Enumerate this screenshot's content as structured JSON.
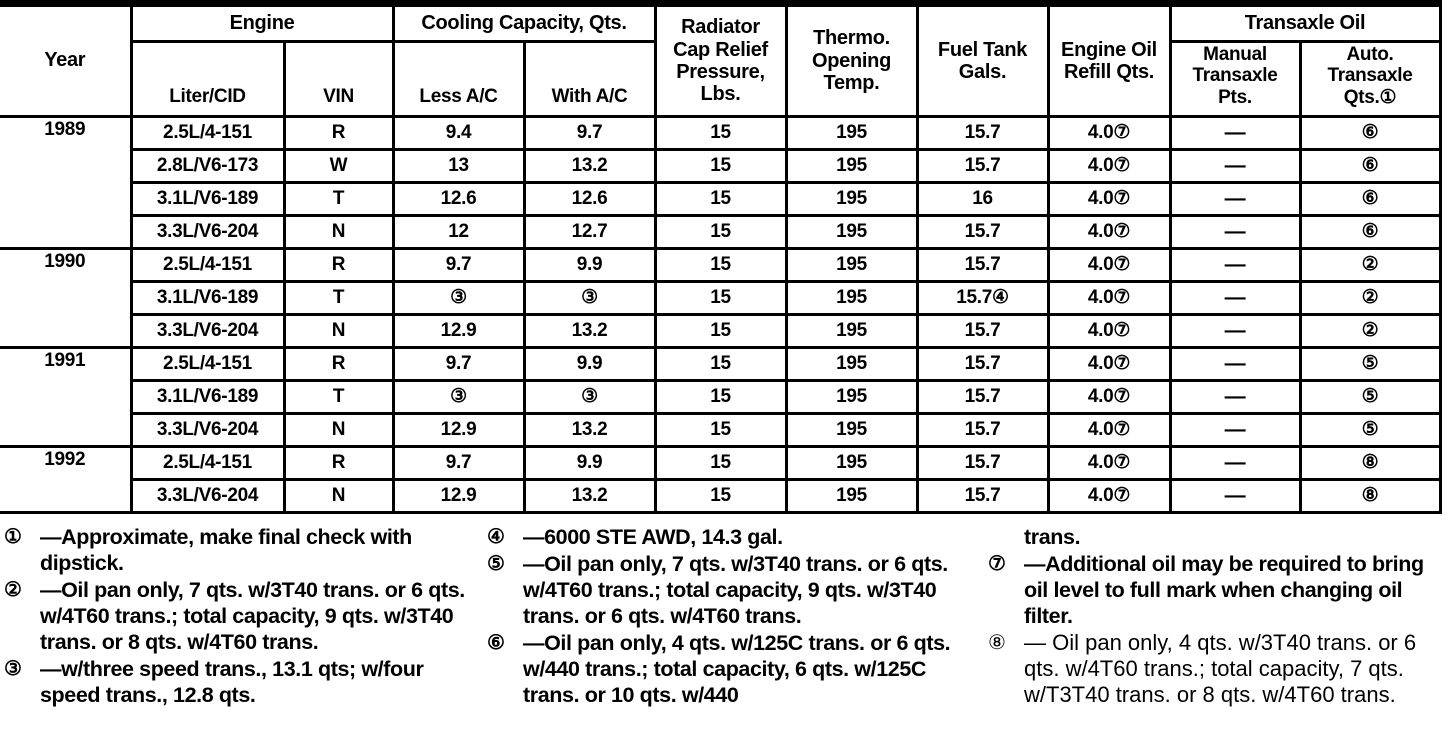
{
  "colors": {
    "ink": "#000000",
    "paper": "#ffffff"
  },
  "table": {
    "header": {
      "year": "Year",
      "engine_group": "Engine",
      "liter_cid": "Liter/CID",
      "vin": "VIN",
      "cooling_group": "Cooling Capacity, Qts.",
      "less_ac": "Less A/C",
      "with_ac": "With A/C",
      "radiator": "Radiator\nCap Relief\nPressure,\nLbs.",
      "thermo": "Thermo.\nOpening\nTemp.",
      "fuel": "Fuel Tank\nGals.",
      "engine_oil": "Engine Oil\nRefill Qts.",
      "transaxle_group": "Transaxle Oil",
      "manual_transaxle": "Manual\nTransaxle\nPts.",
      "auto_transaxle": "Auto.\nTransaxle\nQts.①"
    },
    "groups": [
      {
        "year": "1989",
        "rows": [
          [
            "2.5L/4-151",
            "R",
            "9.4",
            "9.7",
            "15",
            "195",
            "15.7",
            "4.0⑦",
            "—",
            "⑥"
          ],
          [
            "2.8L/V6-173",
            "W",
            "13",
            "13.2",
            "15",
            "195",
            "15.7",
            "4.0⑦",
            "—",
            "⑥"
          ],
          [
            "3.1L/V6-189",
            "T",
            "12.6",
            "12.6",
            "15",
            "195",
            "16",
            "4.0⑦",
            "—",
            "⑥"
          ],
          [
            "3.3L/V6-204",
            "N",
            "12",
            "12.7",
            "15",
            "195",
            "15.7",
            "4.0⑦",
            "—",
            "⑥"
          ]
        ]
      },
      {
        "year": "1990",
        "rows": [
          [
            "2.5L/4-151",
            "R",
            "9.7",
            "9.9",
            "15",
            "195",
            "15.7",
            "4.0⑦",
            "—",
            "②"
          ],
          [
            "3.1L/V6-189",
            "T",
            "③",
            "③",
            "15",
            "195",
            "15.7④",
            "4.0⑦",
            "—",
            "②"
          ],
          [
            "3.3L/V6-204",
            "N",
            "12.9",
            "13.2",
            "15",
            "195",
            "15.7",
            "4.0⑦",
            "—",
            "②"
          ]
        ]
      },
      {
        "year": "1991",
        "rows": [
          [
            "2.5L/4-151",
            "R",
            "9.7",
            "9.9",
            "15",
            "195",
            "15.7",
            "4.0⑦",
            "—",
            "⑤"
          ],
          [
            "3.1L/V6-189",
            "T",
            "③",
            "③",
            "15",
            "195",
            "15.7",
            "4.0⑦",
            "—",
            "⑤"
          ],
          [
            "3.3L/V6-204",
            "N",
            "12.9",
            "13.2",
            "15",
            "195",
            "15.7",
            "4.0⑦",
            "—",
            "⑤"
          ]
        ]
      },
      {
        "year": "1992",
        "rows": [
          [
            "2.5L/4-151",
            "R",
            "9.7",
            "9.9",
            "15",
            "195",
            "15.7",
            "4.0⑦",
            "—",
            "⑧"
          ],
          [
            "3.3L/V6-204",
            "N",
            "12.9",
            "13.2",
            "15",
            "195",
            "15.7",
            "4.0⑦",
            "—",
            "⑧"
          ]
        ]
      }
    ]
  },
  "footnotes": {
    "columns": [
      [
        {
          "marker": "①",
          "text": "—Approximate, make final check with dipstick."
        },
        {
          "marker": "②",
          "text": "—Oil pan only, 7 qts. w/3T40 trans. or 6 qts. w/4T60 trans.; total capacity, 9 qts. w/3T40 trans. or 8 qts. w/4T60 trans."
        },
        {
          "marker": "③",
          "text": "—w/three speed trans., 13.1 qts; w/four speed trans., 12.8 qts."
        }
      ],
      [
        {
          "marker": "④",
          "text": "—6000 STE AWD, 14.3 gal."
        },
        {
          "marker": "⑤",
          "text": "—Oil pan only, 7 qts. w/3T40 trans. or 6 qts. w/4T60 trans.; total capacity, 9 qts. w/3T40 trans. or 6 qts. w/4T60 trans."
        },
        {
          "marker": "⑥",
          "text": "—Oil pan only, 4 qts. w/125C trans. or 6 qts. w/440 trans.; total capacity, 6 qts. w/125C trans. or 10 qts. w/440"
        }
      ],
      [
        {
          "marker": "",
          "text": "trans."
        },
        {
          "marker": "⑦",
          "text": "—Additional oil may be required to bring oil level to full mark when changing oil filter."
        },
        {
          "marker": "⑧",
          "text": "— Oil pan only, 4 qts. w/3T40 trans. or 6 qts. w/4T60 trans.; total capacity, 7 qts. w/T3T40 trans. or 8 qts. w/4T60 trans.",
          "light": true
        }
      ]
    ]
  }
}
